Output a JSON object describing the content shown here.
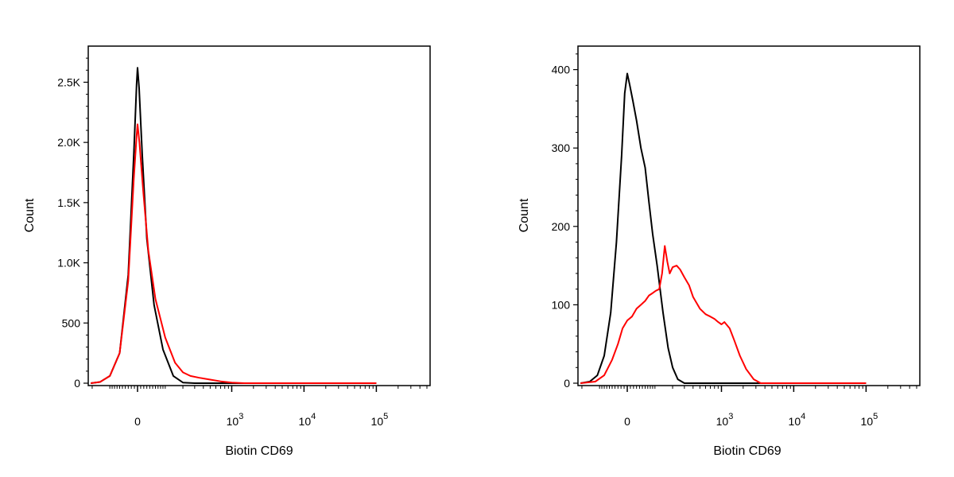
{
  "chart_data": [
    {
      "type": "line",
      "panel": "left",
      "xlabel": "Biotin CD69",
      "ylabel": "Count",
      "x_scale": "biexponential",
      "y_ticks": [
        {
          "value": 0,
          "label": "0"
        },
        {
          "value": 500,
          "label": "500"
        },
        {
          "value": 1000,
          "label": "1.0K"
        },
        {
          "value": 1500,
          "label": "1.5K"
        },
        {
          "value": 2000,
          "label": "2.0K"
        },
        {
          "value": 2500,
          "label": "2.5K"
        }
      ],
      "x_ticks": [
        {
          "value": 0,
          "label": "0"
        },
        {
          "value": 1000,
          "label": "10",
          "sup": "3"
        },
        {
          "value": 10000,
          "label": "10",
          "sup": "4"
        },
        {
          "value": 100000,
          "label": "10",
          "sup": "5"
        }
      ],
      "series": [
        {
          "color": "#000000",
          "points": [
            [
              -210,
              0
            ],
            [
              -150,
              10
            ],
            [
              -100,
              60
            ],
            [
              -60,
              250
            ],
            [
              -30,
              900
            ],
            [
              -12,
              1900
            ],
            [
              -3,
              2480
            ],
            [
              0,
              2620
            ],
            [
              5,
              2450
            ],
            [
              15,
              1900
            ],
            [
              30,
              1200
            ],
            [
              55,
              650
            ],
            [
              90,
              280
            ],
            [
              140,
              60
            ],
            [
              200,
              5
            ],
            [
              300,
              0
            ],
            [
              100000,
              0
            ]
          ]
        },
        {
          "color": "#ff0000",
          "points": [
            [
              -210,
              0
            ],
            [
              -150,
              10
            ],
            [
              -100,
              60
            ],
            [
              -60,
              250
            ],
            [
              -30,
              850
            ],
            [
              -12,
              1700
            ],
            [
              -3,
              2050
            ],
            [
              0,
              2150
            ],
            [
              6,
              2000
            ],
            [
              18,
              1600
            ],
            [
              35,
              1100
            ],
            [
              60,
              700
            ],
            [
              100,
              380
            ],
            [
              150,
              170
            ],
            [
              200,
              90
            ],
            [
              260,
              60
            ],
            [
              350,
              45
            ],
            [
              500,
              30
            ],
            [
              700,
              15
            ],
            [
              1000,
              5
            ],
            [
              1500,
              0
            ],
            [
              100000,
              0
            ]
          ]
        }
      ]
    },
    {
      "type": "line",
      "panel": "right",
      "xlabel": "Biotin CD69",
      "ylabel": "Count",
      "x_scale": "biexponential",
      "y_ticks": [
        {
          "value": 0,
          "label": "0"
        },
        {
          "value": 100,
          "label": "100"
        },
        {
          "value": 200,
          "label": "200"
        },
        {
          "value": 300,
          "label": "300"
        },
        {
          "value": 400,
          "label": "400"
        }
      ],
      "x_ticks": [
        {
          "value": 0,
          "label": "0"
        },
        {
          "value": 1000,
          "label": "10",
          "sup": "3"
        },
        {
          "value": 10000,
          "label": "10",
          "sup": "4"
        },
        {
          "value": 100000,
          "label": "10",
          "sup": "5"
        }
      ],
      "series": [
        {
          "color": "#000000",
          "points": [
            [
              -210,
              0
            ],
            [
              -150,
              2
            ],
            [
              -110,
              10
            ],
            [
              -80,
              35
            ],
            [
              -55,
              90
            ],
            [
              -35,
              180
            ],
            [
              -18,
              290
            ],
            [
              -8,
              370
            ],
            [
              0,
              395
            ],
            [
              8,
              380
            ],
            [
              18,
              360
            ],
            [
              30,
              335
            ],
            [
              45,
              300
            ],
            [
              60,
              275
            ],
            [
              75,
              230
            ],
            [
              90,
              190
            ],
            [
              110,
              150
            ],
            [
              140,
              90
            ],
            [
              170,
              45
            ],
            [
              200,
              20
            ],
            [
              240,
              5
            ],
            [
              300,
              0
            ],
            [
              100000,
              0
            ]
          ]
        },
        {
          "color": "#ff0000",
          "points": [
            [
              -210,
              0
            ],
            [
              -120,
              2
            ],
            [
              -80,
              10
            ],
            [
              -50,
              30
            ],
            [
              -30,
              50
            ],
            [
              -15,
              70
            ],
            [
              0,
              80
            ],
            [
              15,
              85
            ],
            [
              30,
              95
            ],
            [
              45,
              100
            ],
            [
              60,
              105
            ],
            [
              75,
              112
            ],
            [
              90,
              115
            ],
            [
              105,
              118
            ],
            [
              120,
              120
            ],
            [
              135,
              140
            ],
            [
              150,
              175
            ],
            [
              165,
              155
            ],
            [
              180,
              140
            ],
            [
              200,
              148
            ],
            [
              230,
              150
            ],
            [
              260,
              145
            ],
            [
              300,
              135
            ],
            [
              350,
              125
            ],
            [
              400,
              110
            ],
            [
              500,
              95
            ],
            [
              600,
              88
            ],
            [
              700,
              85
            ],
            [
              800,
              82
            ],
            [
              900,
              78
            ],
            [
              1000,
              75
            ],
            [
              1100,
              78
            ],
            [
              1300,
              70
            ],
            [
              1500,
              55
            ],
            [
              1800,
              35
            ],
            [
              2200,
              18
            ],
            [
              2800,
              5
            ],
            [
              3500,
              0
            ],
            [
              100000,
              0
            ]
          ]
        }
      ]
    }
  ]
}
